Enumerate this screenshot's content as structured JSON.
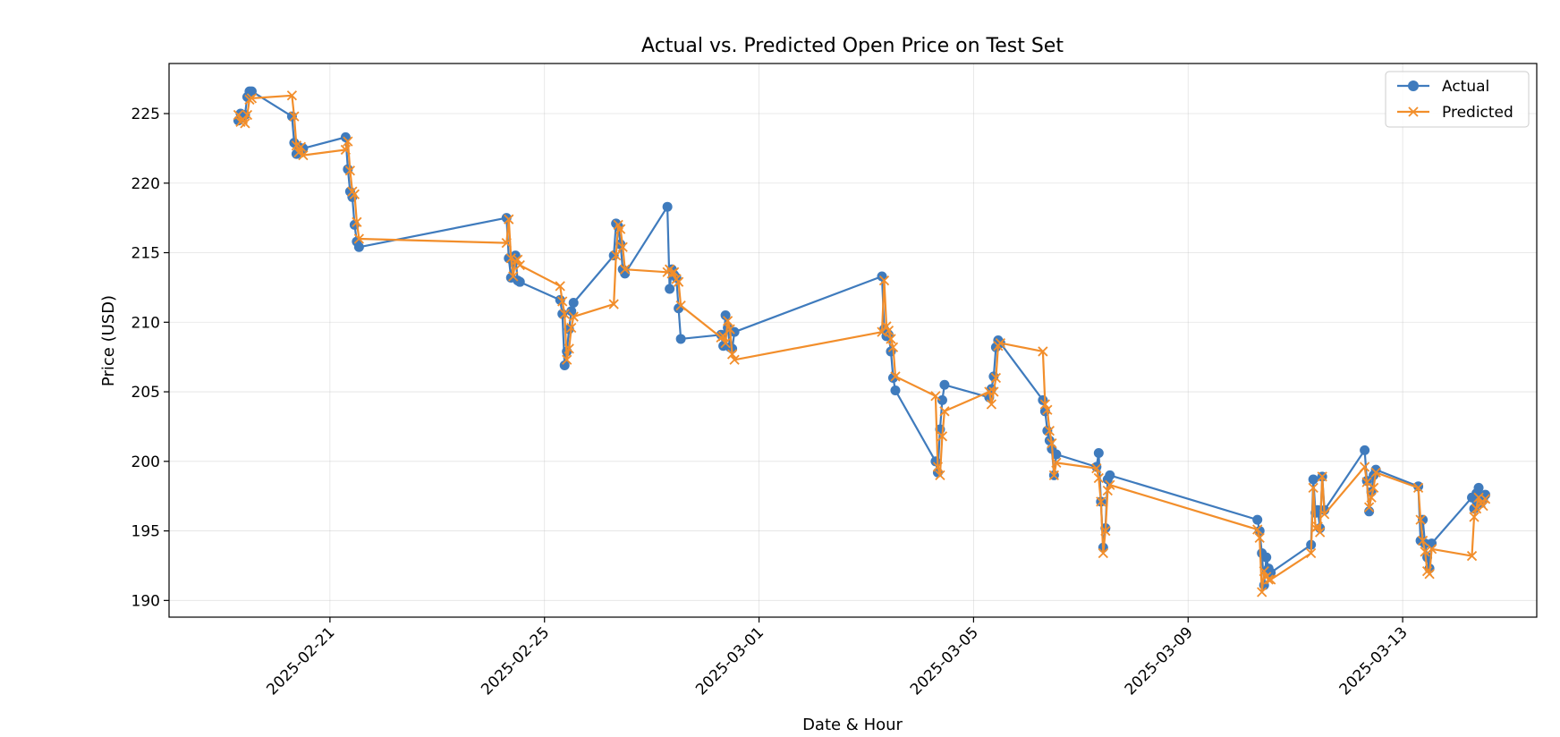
{
  "chart_data": {
    "type": "line",
    "title": "Actual vs. Predicted Open Price on Test Set",
    "xlabel": "Date & Hour",
    "ylabel": "Price (USD)",
    "x_axis_type": "date",
    "xlim": [
      "2025-02-18",
      "2025-03-15T12:00"
    ],
    "ylim": [
      188.8,
      228.6
    ],
    "yticks": [
      190,
      195,
      200,
      205,
      210,
      215,
      220,
      225
    ],
    "xticks": [
      "2025-02-21",
      "2025-02-25",
      "2025-03-01",
      "2025-03-05",
      "2025-03-09",
      "2025-03-13"
    ],
    "grid": true,
    "legend_position": "top-right",
    "series": [
      {
        "name": "Actual",
        "color": "#3f7bbd",
        "marker": "circle",
        "x": [
          "2025-02-19T07:00",
          "2025-02-19T08:00",
          "2025-02-19T09:00",
          "2025-02-19T10:00",
          "2025-02-19T11:00",
          "2025-02-19T12:00",
          "2025-02-19T13:00",
          "2025-02-20T07:00",
          "2025-02-20T08:00",
          "2025-02-20T09:00",
          "2025-02-20T10:00",
          "2025-02-20T11:00",
          "2025-02-20T12:00",
          "2025-02-21T07:00",
          "2025-02-21T08:00",
          "2025-02-21T09:00",
          "2025-02-21T10:00",
          "2025-02-21T11:00",
          "2025-02-21T12:00",
          "2025-02-21T13:00",
          "2025-02-24T07:00",
          "2025-02-24T08:00",
          "2025-02-24T09:00",
          "2025-02-24T10:00",
          "2025-02-24T11:00",
          "2025-02-24T12:00",
          "2025-02-24T13:00",
          "2025-02-25T07:00",
          "2025-02-25T08:00",
          "2025-02-25T09:00",
          "2025-02-25T10:00",
          "2025-02-25T11:00",
          "2025-02-25T12:00",
          "2025-02-25T13:00",
          "2025-02-26T07:00",
          "2025-02-26T08:00",
          "2025-02-26T09:00",
          "2025-02-26T10:00",
          "2025-02-26T11:00",
          "2025-02-26T12:00",
          "2025-02-27T07:00",
          "2025-02-27T08:00",
          "2025-02-27T09:00",
          "2025-02-27T10:00",
          "2025-02-27T11:00",
          "2025-02-27T12:00",
          "2025-02-27T13:00",
          "2025-02-28T07:00",
          "2025-02-28T08:00",
          "2025-02-28T09:00",
          "2025-02-28T10:00",
          "2025-02-28T11:00",
          "2025-02-28T12:00",
          "2025-02-28T13:00",
          "2025-03-03T07:00",
          "2025-03-03T08:00",
          "2025-03-03T09:00",
          "2025-03-03T10:00",
          "2025-03-03T11:00",
          "2025-03-03T12:00",
          "2025-03-03T13:00",
          "2025-03-04T07:00",
          "2025-03-04T08:00",
          "2025-03-04T09:00",
          "2025-03-04T10:00",
          "2025-03-04T11:00",
          "2025-03-05T07:00",
          "2025-03-05T08:00",
          "2025-03-05T09:00",
          "2025-03-05T10:00",
          "2025-03-05T11:00",
          "2025-03-05T12:00",
          "2025-03-06T07:00",
          "2025-03-06T08:00",
          "2025-03-06T09:00",
          "2025-03-06T10:00",
          "2025-03-06T11:00",
          "2025-03-06T12:00",
          "2025-03-06T13:00",
          "2025-03-07T07:00",
          "2025-03-07T08:00",
          "2025-03-07T09:00",
          "2025-03-07T10:00",
          "2025-03-07T11:00",
          "2025-03-07T12:00",
          "2025-03-07T13:00",
          "2025-03-10T07:00",
          "2025-03-10T08:00",
          "2025-03-10T09:00",
          "2025-03-10T10:00",
          "2025-03-10T11:00",
          "2025-03-10T12:00",
          "2025-03-10T13:00",
          "2025-03-11T07:00",
          "2025-03-11T08:00",
          "2025-03-11T09:00",
          "2025-03-11T10:00",
          "2025-03-11T11:00",
          "2025-03-11T12:00",
          "2025-03-11T13:00",
          "2025-03-12T07:00",
          "2025-03-12T08:00",
          "2025-03-12T09:00",
          "2025-03-12T10:00",
          "2025-03-12T11:00",
          "2025-03-12T12:00",
          "2025-03-13T07:00",
          "2025-03-13T08:00",
          "2025-03-13T09:00",
          "2025-03-13T10:00",
          "2025-03-13T11:00",
          "2025-03-13T12:00",
          "2025-03-13T13:00",
          "2025-03-14T07:00",
          "2025-03-14T08:00",
          "2025-03-14T09:00",
          "2025-03-14T10:00",
          "2025-03-14T11:00",
          "2025-03-14T12:00",
          "2025-03-14T13:00"
        ],
        "y": [
          224.5,
          225.0,
          224.8,
          224.9,
          226.2,
          226.6,
          226.6,
          224.8,
          222.9,
          222.1,
          222.6,
          222.3,
          222.5,
          223.3,
          221.0,
          219.4,
          219.0,
          217.0,
          215.8,
          215.4,
          217.5,
          214.6,
          213.2,
          214.3,
          214.8,
          213.0,
          212.9,
          211.6,
          210.6,
          206.9,
          207.9,
          209.5,
          210.8,
          211.4,
          214.8,
          217.1,
          216.9,
          215.6,
          213.8,
          213.5,
          218.3,
          212.4,
          213.8,
          213.4,
          213.2,
          211.0,
          208.8,
          209.1,
          208.3,
          210.5,
          209.6,
          208.2,
          208.1,
          209.3,
          213.3,
          209.5,
          209.0,
          209.1,
          207.9,
          206.0,
          205.1,
          200.0,
          199.2,
          202.3,
          204.4,
          205.5,
          204.6,
          205.2,
          206.1,
          208.2,
          208.7,
          208.5,
          204.4,
          203.6,
          202.2,
          201.5,
          200.9,
          199.0,
          200.5,
          199.6,
          200.6,
          197.1,
          193.8,
          195.2,
          198.7,
          199.0,
          195.8,
          195.0,
          193.4,
          191.1,
          193.1,
          192.3,
          192.0,
          194.0,
          198.7,
          196.3,
          196.5,
          195.2,
          198.9,
          196.5,
          200.8,
          198.6,
          196.4,
          197.8,
          199.0,
          199.4,
          198.2,
          194.3,
          195.8,
          194.1,
          193.1,
          192.3,
          194.1,
          197.4,
          196.6,
          197.7,
          198.1,
          197.0,
          197.2,
          197.6
        ]
      },
      {
        "name": "Predicted",
        "color": "#f28e2b",
        "marker": "x",
        "x": [
          "2025-02-19T07:00",
          "2025-02-19T08:00",
          "2025-02-19T09:00",
          "2025-02-19T10:00",
          "2025-02-19T11:00",
          "2025-02-19T12:00",
          "2025-02-19T13:00",
          "2025-02-20T07:00",
          "2025-02-20T08:00",
          "2025-02-20T09:00",
          "2025-02-20T10:00",
          "2025-02-20T11:00",
          "2025-02-20T12:00",
          "2025-02-21T07:00",
          "2025-02-21T08:00",
          "2025-02-21T09:00",
          "2025-02-21T10:00",
          "2025-02-21T11:00",
          "2025-02-21T12:00",
          "2025-02-21T13:00",
          "2025-02-24T07:00",
          "2025-02-24T08:00",
          "2025-02-24T09:00",
          "2025-02-24T10:00",
          "2025-02-24T11:00",
          "2025-02-24T12:00",
          "2025-02-24T13:00",
          "2025-02-25T07:00",
          "2025-02-25T08:00",
          "2025-02-25T09:00",
          "2025-02-25T10:00",
          "2025-02-25T11:00",
          "2025-02-25T12:00",
          "2025-02-25T13:00",
          "2025-02-26T07:00",
          "2025-02-26T08:00",
          "2025-02-26T09:00",
          "2025-02-26T10:00",
          "2025-02-26T11:00",
          "2025-02-26T12:00",
          "2025-02-27T07:00",
          "2025-02-27T08:00",
          "2025-02-27T09:00",
          "2025-02-27T10:00",
          "2025-02-27T11:00",
          "2025-02-27T12:00",
          "2025-02-27T13:00",
          "2025-02-28T07:00",
          "2025-02-28T08:00",
          "2025-02-28T09:00",
          "2025-02-28T10:00",
          "2025-02-28T11:00",
          "2025-02-28T12:00",
          "2025-02-28T13:00",
          "2025-03-03T07:00",
          "2025-03-03T08:00",
          "2025-03-03T09:00",
          "2025-03-03T10:00",
          "2025-03-03T11:00",
          "2025-03-03T12:00",
          "2025-03-03T13:00",
          "2025-03-04T07:00",
          "2025-03-04T08:00",
          "2025-03-04T09:00",
          "2025-03-04T10:00",
          "2025-03-04T11:00",
          "2025-03-05T07:00",
          "2025-03-05T08:00",
          "2025-03-05T09:00",
          "2025-03-05T10:00",
          "2025-03-05T11:00",
          "2025-03-05T12:00",
          "2025-03-06T07:00",
          "2025-03-06T08:00",
          "2025-03-06T09:00",
          "2025-03-06T10:00",
          "2025-03-06T11:00",
          "2025-03-06T12:00",
          "2025-03-06T13:00",
          "2025-03-07T07:00",
          "2025-03-07T08:00",
          "2025-03-07T09:00",
          "2025-03-07T10:00",
          "2025-03-07T11:00",
          "2025-03-07T12:00",
          "2025-03-07T13:00",
          "2025-03-10T07:00",
          "2025-03-10T08:00",
          "2025-03-10T09:00",
          "2025-03-10T10:00",
          "2025-03-10T11:00",
          "2025-03-10T12:00",
          "2025-03-10T13:00",
          "2025-03-11T07:00",
          "2025-03-11T08:00",
          "2025-03-11T09:00",
          "2025-03-11T10:00",
          "2025-03-11T11:00",
          "2025-03-11T12:00",
          "2025-03-11T13:00",
          "2025-03-12T07:00",
          "2025-03-12T08:00",
          "2025-03-12T09:00",
          "2025-03-12T10:00",
          "2025-03-12T11:00",
          "2025-03-12T12:00",
          "2025-03-13T07:00",
          "2025-03-13T08:00",
          "2025-03-13T09:00",
          "2025-03-13T10:00",
          "2025-03-13T11:00",
          "2025-03-13T12:00",
          "2025-03-13T13:00",
          "2025-03-14T07:00",
          "2025-03-14T08:00",
          "2025-03-14T09:00",
          "2025-03-14T10:00",
          "2025-03-14T11:00",
          "2025-03-14T12:00",
          "2025-03-14T13:00"
        ],
        "y": [
          224.9,
          224.4,
          224.6,
          224.3,
          224.9,
          226.0,
          226.1,
          226.3,
          224.8,
          222.7,
          222.2,
          222.6,
          222.0,
          222.4,
          223.0,
          220.9,
          219.4,
          219.2,
          217.2,
          216.0,
          215.7,
          217.4,
          214.6,
          213.3,
          214.4,
          214.5,
          214.1,
          212.6,
          211.5,
          210.6,
          207.3,
          208.1,
          209.6,
          210.4,
          211.3,
          214.8,
          217.0,
          216.7,
          215.4,
          213.8,
          213.6,
          213.8,
          213.5,
          213.6,
          213.1,
          212.9,
          211.2,
          208.9,
          209.0,
          208.5,
          210.1,
          209.5,
          207.7,
          207.3,
          209.3,
          213.0,
          209.7,
          209.4,
          208.8,
          208.2,
          206.1,
          204.7,
          199.6,
          199.0,
          201.8,
          203.6,
          205.0,
          204.1,
          205.0,
          206.0,
          208.3,
          208.5,
          207.9,
          204.1,
          203.7,
          202.2,
          201.3,
          199.0,
          199.9,
          199.5,
          198.8,
          197.1,
          193.4,
          195.0,
          197.9,
          198.3,
          195.1,
          194.5,
          190.6,
          192.1,
          191.7,
          191.5,
          191.5,
          193.4,
          198.1,
          195.2,
          195.3,
          194.9,
          198.9,
          196.2,
          199.6,
          198.5,
          196.7,
          197.4,
          198.1,
          199.2,
          198.1,
          195.8,
          194.3,
          193.5,
          192.1,
          191.9,
          193.7,
          193.2,
          196.0,
          196.6,
          197.4,
          197.0,
          196.8,
          197.3
        ]
      }
    ]
  }
}
